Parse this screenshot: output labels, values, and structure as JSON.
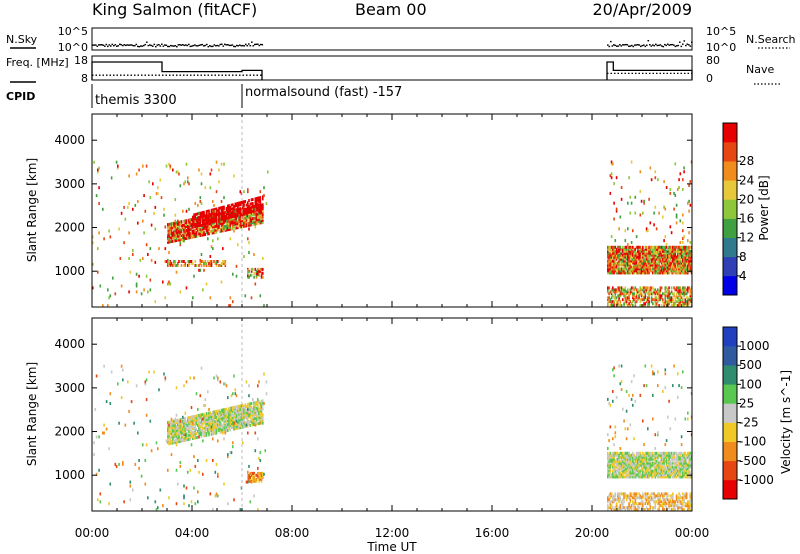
{
  "header": {
    "station": "King Salmon (fitACF)",
    "beam": "Beam 00",
    "date": "20/Apr/2009"
  },
  "chart_data": [
    {
      "type": "line",
      "panel": "noise",
      "left_label": "N.Sky",
      "right_label": "N.Search",
      "left_ticks": [
        "10^5",
        "10^0"
      ],
      "right_ticks": [
        "10^5",
        "10^0"
      ],
      "segments": [
        {
          "x_start": 0.0,
          "x_end": 6.8
        },
        {
          "x_start": 20.6,
          "x_end": 24.0
        }
      ]
    },
    {
      "type": "line",
      "panel": "frequency",
      "left_label": "Freq. [MHz]",
      "right_label": "Nave",
      "left_ticks": [
        18,
        8
      ],
      "right_ticks": [
        80,
        0
      ],
      "ylim_left": [
        8,
        18
      ],
      "ylim_right": [
        0,
        80
      ],
      "freq": [
        {
          "x": [
            0.0,
            2.8
          ],
          "y": 15.5
        },
        {
          "x": [
            2.8,
            6.0
          ],
          "y": 11.5
        },
        {
          "x": [
            6.0,
            6.8
          ],
          "y": 12.0
        },
        {
          "x": [
            20.6,
            20.85
          ],
          "y": 15.5
        },
        {
          "x": [
            20.85,
            24.0
          ],
          "y": 12.0
        }
      ],
      "nave": [
        {
          "x": [
            0.0,
            6.8
          ],
          "y": 16
        },
        {
          "x": [
            20.6,
            24.0
          ],
          "y": 22
        }
      ]
    },
    {
      "type": "table",
      "panel": "cpid",
      "label": "CPID",
      "entries": [
        {
          "x_start": 0.0,
          "x_end": 6.0,
          "text": "themis 3300"
        },
        {
          "x_start": 6.0,
          "x_end": 24.0,
          "text": "normalsound (fast) -157"
        }
      ]
    },
    {
      "type": "heatmap",
      "panel": "power",
      "ylabel": "Slant Range [km]",
      "yticks": [
        1000,
        2000,
        3000,
        4000
      ],
      "ylim": [
        180,
        4600
      ],
      "xlim": [
        0,
        24
      ],
      "colorbar": {
        "label": "Power [dB]",
        "ticks": [
          4,
          8,
          12,
          16,
          20,
          24,
          28
        ],
        "range": [
          0,
          32
        ],
        "colors": [
          "#0000e6",
          "#2f3fb5",
          "#2f7a8c",
          "#3fa040",
          "#8cc83a",
          "#e6c83a",
          "#f08c1e",
          "#e64614",
          "#e60000"
        ]
      },
      "regions": [
        {
          "x": [
            3.0,
            6.8
          ],
          "y": [
            1650,
            2100
          ],
          "dy_per_hour": 120,
          "level": [
            3,
            12
          ],
          "density": 0.85
        },
        {
          "x": [
            4.0,
            6.8
          ],
          "y": [
            2000,
            2300
          ],
          "dy_per_hour": 150,
          "level": [
            8,
            18
          ],
          "density": 0.7
        },
        {
          "x": [
            2.9,
            5.3
          ],
          "y": [
            1120,
            1250
          ],
          "dy_per_hour": 0,
          "level": [
            3,
            8
          ],
          "density": 0.5
        },
        {
          "x": [
            6.2,
            6.8
          ],
          "y": [
            850,
            1050
          ],
          "dy_per_hour": 0,
          "level": [
            3,
            8
          ],
          "density": 0.6
        },
        {
          "x": [
            20.6,
            24.0
          ],
          "y": [
            950,
            1550
          ],
          "dy_per_hour": 0,
          "level": [
            3,
            9
          ],
          "density": 0.9
        },
        {
          "x": [
            20.6,
            24.0
          ],
          "y": [
            200,
            650
          ],
          "dy_per_hour": 0,
          "level": [
            3,
            8
          ],
          "density": 0.55
        },
        {
          "x": [
            0.0,
            7.0
          ],
          "y": [
            200,
            3500
          ],
          "dy_per_hour": 0,
          "level": [
            3,
            8
          ],
          "density": 0.02
        },
        {
          "x": [
            20.6,
            24.0
          ],
          "y": [
            1600,
            3500
          ],
          "dy_per_hour": 0,
          "level": [
            3,
            8
          ],
          "density": 0.03
        }
      ]
    },
    {
      "type": "heatmap",
      "panel": "velocity",
      "ylabel": "Slant Range [km]",
      "yticks": [
        1000,
        2000,
        3000,
        4000
      ],
      "ylim": [
        180,
        4600
      ],
      "xlim": [
        0,
        24
      ],
      "xticks": [
        "00:00",
        "04:00",
        "08:00",
        "12:00",
        "16:00",
        "20:00",
        "00:00"
      ],
      "xlabel": "Time UT",
      "colorbar": {
        "label": "Velocity [m s^-1]",
        "ticks": [
          "1000",
          "500",
          "100",
          "25",
          "-25",
          "-100",
          "-500",
          "-1000"
        ],
        "colors": [
          "#2040c0",
          "#2f5aa0",
          "#2f8c6e",
          "#58c850",
          "#c8c8c8",
          "#f0c828",
          "#f08c1e",
          "#e64614",
          "#e60000"
        ]
      },
      "regions": [
        {
          "x": [
            3.0,
            6.8
          ],
          "y": [
            1700,
            2200
          ],
          "dy_per_hour": 130,
          "level": [
            3,
            5
          ],
          "density": 0.85
        },
        {
          "x": [
            6.2,
            6.8
          ],
          "y": [
            850,
            1050
          ],
          "dy_per_hour": 0,
          "level": [
            5,
            7
          ],
          "density": 0.6
        },
        {
          "x": [
            20.6,
            24.0
          ],
          "y": [
            950,
            1500
          ],
          "dy_per_hour": 0,
          "level": [
            3,
            5
          ],
          "density": 0.85
        },
        {
          "x": [
            20.6,
            24.0
          ],
          "y": [
            200,
            600
          ],
          "dy_per_hour": 0,
          "level": [
            4,
            6
          ],
          "density": 0.55
        },
        {
          "x": [
            0.0,
            7.0
          ],
          "y": [
            200,
            3500
          ],
          "dy_per_hour": 0,
          "level": [
            2,
            7
          ],
          "density": 0.02
        },
        {
          "x": [
            20.6,
            24.0
          ],
          "y": [
            1600,
            3500
          ],
          "dy_per_hour": 0,
          "level": [
            2,
            7
          ],
          "density": 0.03
        }
      ]
    }
  ]
}
